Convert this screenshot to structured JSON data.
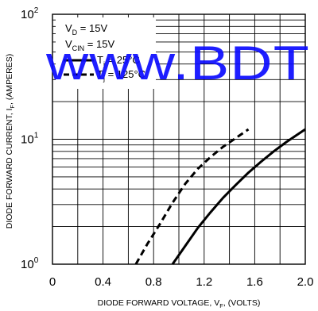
{
  "chart_data": {
    "type": "line",
    "xlabel": "DIODE FORWARD VOLTAGE, V",
    "xlabel_sub": "F",
    "xlabel_suffix": ", (VOLTS)",
    "ylabel": "DIODE FORWARD CURRENT, I",
    "ylabel_sub": "F",
    "ylabel_suffix": ", (AMPERES)",
    "xlim": [
      0,
      2.0
    ],
    "ylim": [
      1,
      100
    ],
    "yscale": "log",
    "grid": true,
    "x_ticks": [
      "0",
      "0.4",
      "0.8",
      "1.2",
      "1.6",
      "2.0"
    ],
    "y_ticks": [
      {
        "base": "10",
        "exp": "0"
      },
      {
        "base": "10",
        "exp": "1"
      },
      {
        "base": "10",
        "exp": "2"
      }
    ],
    "legend_position": "top-left",
    "conditions": [
      {
        "main": "V",
        "sub": "D",
        "rest": " = 15V"
      },
      {
        "main": "V",
        "sub": "CIN",
        "rest": " = 15V"
      }
    ],
    "series": [
      {
        "name_main": "T",
        "name_sub": "j",
        "name_rest": " = 25°C",
        "style": "solid",
        "x": [
          0.95,
          1.05,
          1.15,
          1.25,
          1.35,
          1.45,
          1.55,
          1.65,
          1.75,
          1.85,
          2.0
        ],
        "y": [
          1.0,
          1.4,
          1.95,
          2.6,
          3.4,
          4.3,
          5.4,
          6.6,
          8.0,
          9.5,
          12.0
        ]
      },
      {
        "name_main": "T",
        "name_sub": "j",
        "name_rest": " = 125°C",
        "style": "dashed",
        "x": [
          0.66,
          0.75,
          0.85,
          0.95,
          1.05,
          1.15,
          1.25,
          1.35,
          1.45,
          1.55
        ],
        "y": [
          1.0,
          1.45,
          2.1,
          3.1,
          4.4,
          5.8,
          7.2,
          8.7,
          10.2,
          12.0
        ]
      }
    ]
  },
  "watermark": "www.BDT",
  "colors": {
    "line": "#000000",
    "grid": "#000000",
    "watermark": "#0b0bff"
  }
}
